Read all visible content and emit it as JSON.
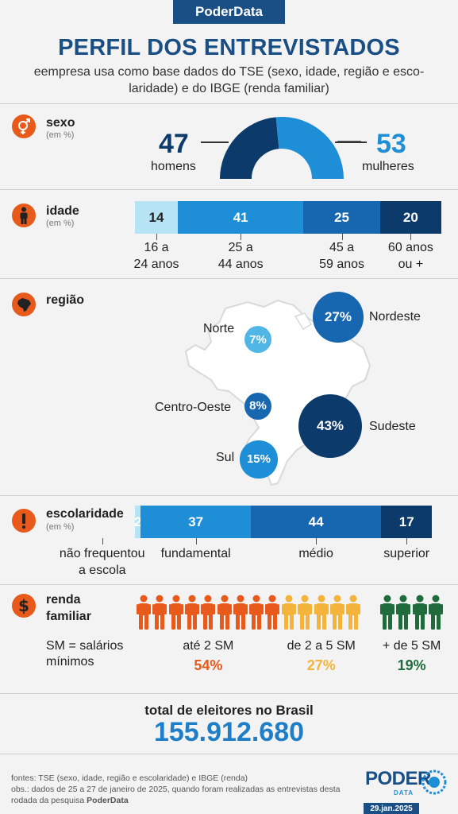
{
  "brand": "PoderData",
  "title": "PERFIL DOS ENTREVISTADOS",
  "subtitle": "eempresa usa como base dados do TSE (sexo, idade, região e esco-laridade) e do IBGE (renda familiar)",
  "colors": {
    "brand_blue": "#1a4f86",
    "orange": "#e85a1b",
    "light_blue": "#b7e4f5",
    "mid_blue": "#1e8fd6",
    "blue": "#1766b0",
    "dark_blue": "#0b3a6b",
    "income_low": "#e85a1b",
    "income_mid": "#f4b33a",
    "income_high": "#1f6b3c"
  },
  "sexo": {
    "label": "sexo",
    "unit": "(em %)",
    "men_value": "47",
    "men_label": "homens",
    "women_value": "53",
    "women_label": "mulheres"
  },
  "idade": {
    "label": "idade",
    "unit": "(em %)"
  },
  "regiao": {
    "label": "região"
  },
  "escolaridade": {
    "label": "escolaridade",
    "unit": "(em %)"
  },
  "renda": {
    "label_line1": "renda",
    "label_line2": "familiar",
    "sm_line1": "SM = salários",
    "sm_line2": "mínimos"
  },
  "total": {
    "label": "total de eleitores no Brasil",
    "value": "155.912.680"
  },
  "footer": {
    "line1": "fontes: TSE (sexo, idade, região e escolaridade) e IBGE (renda)",
    "line2": "obs.: dados de 25 a 27 de janeiro de 2025, quando foram realizadas as entrevistas desta",
    "line3_prefix": "rodada da pesquisa ",
    "line3_bold": "PoderData",
    "logo_text": "PODER",
    "logo_sub": "DATA",
    "date": "29.jan.2025"
  },
  "chart_data": [
    {
      "type": "pie",
      "name": "sexo",
      "categories": [
        "homens",
        "mulheres"
      ],
      "values": [
        47,
        53
      ]
    },
    {
      "type": "bar",
      "name": "idade",
      "categories": [
        "16 a 24 anos",
        "25 a 44 anos",
        "45 a 59 anos",
        "60 anos ou +"
      ],
      "values": [
        14,
        41,
        25,
        20
      ],
      "tick_labels": [
        [
          "16 a",
          "24 anos"
        ],
        [
          "25 a",
          "44 anos"
        ],
        [
          "45 a",
          "59 anos"
        ],
        [
          "60 anos",
          "ou +"
        ]
      ]
    },
    {
      "type": "scatter",
      "name": "região",
      "categories": [
        "Norte",
        "Nordeste",
        "Centro-Oeste",
        "Sudeste",
        "Sul"
      ],
      "values": [
        7,
        27,
        8,
        43,
        15
      ],
      "value_labels": [
        "7%",
        "27%",
        "8%",
        "43%",
        "15%"
      ]
    },
    {
      "type": "bar",
      "name": "escolaridade",
      "categories": [
        "não frequentou a escola",
        "fundamental",
        "médio",
        "superior"
      ],
      "values": [
        2,
        37,
        44,
        17
      ],
      "tick_labels": [
        [
          "não frequentou",
          "a escola"
        ],
        [
          "fundamental"
        ],
        [
          "médio"
        ],
        [
          "superior"
        ]
      ]
    },
    {
      "type": "bar",
      "name": "renda familiar",
      "categories": [
        "até 2 SM",
        "de 2 a 5 SM",
        "+ de 5 SM"
      ],
      "values": [
        54,
        27,
        19
      ],
      "value_labels": [
        "54%",
        "27%",
        "19%"
      ],
      "icon_counts": [
        9,
        5,
        4
      ]
    }
  ]
}
